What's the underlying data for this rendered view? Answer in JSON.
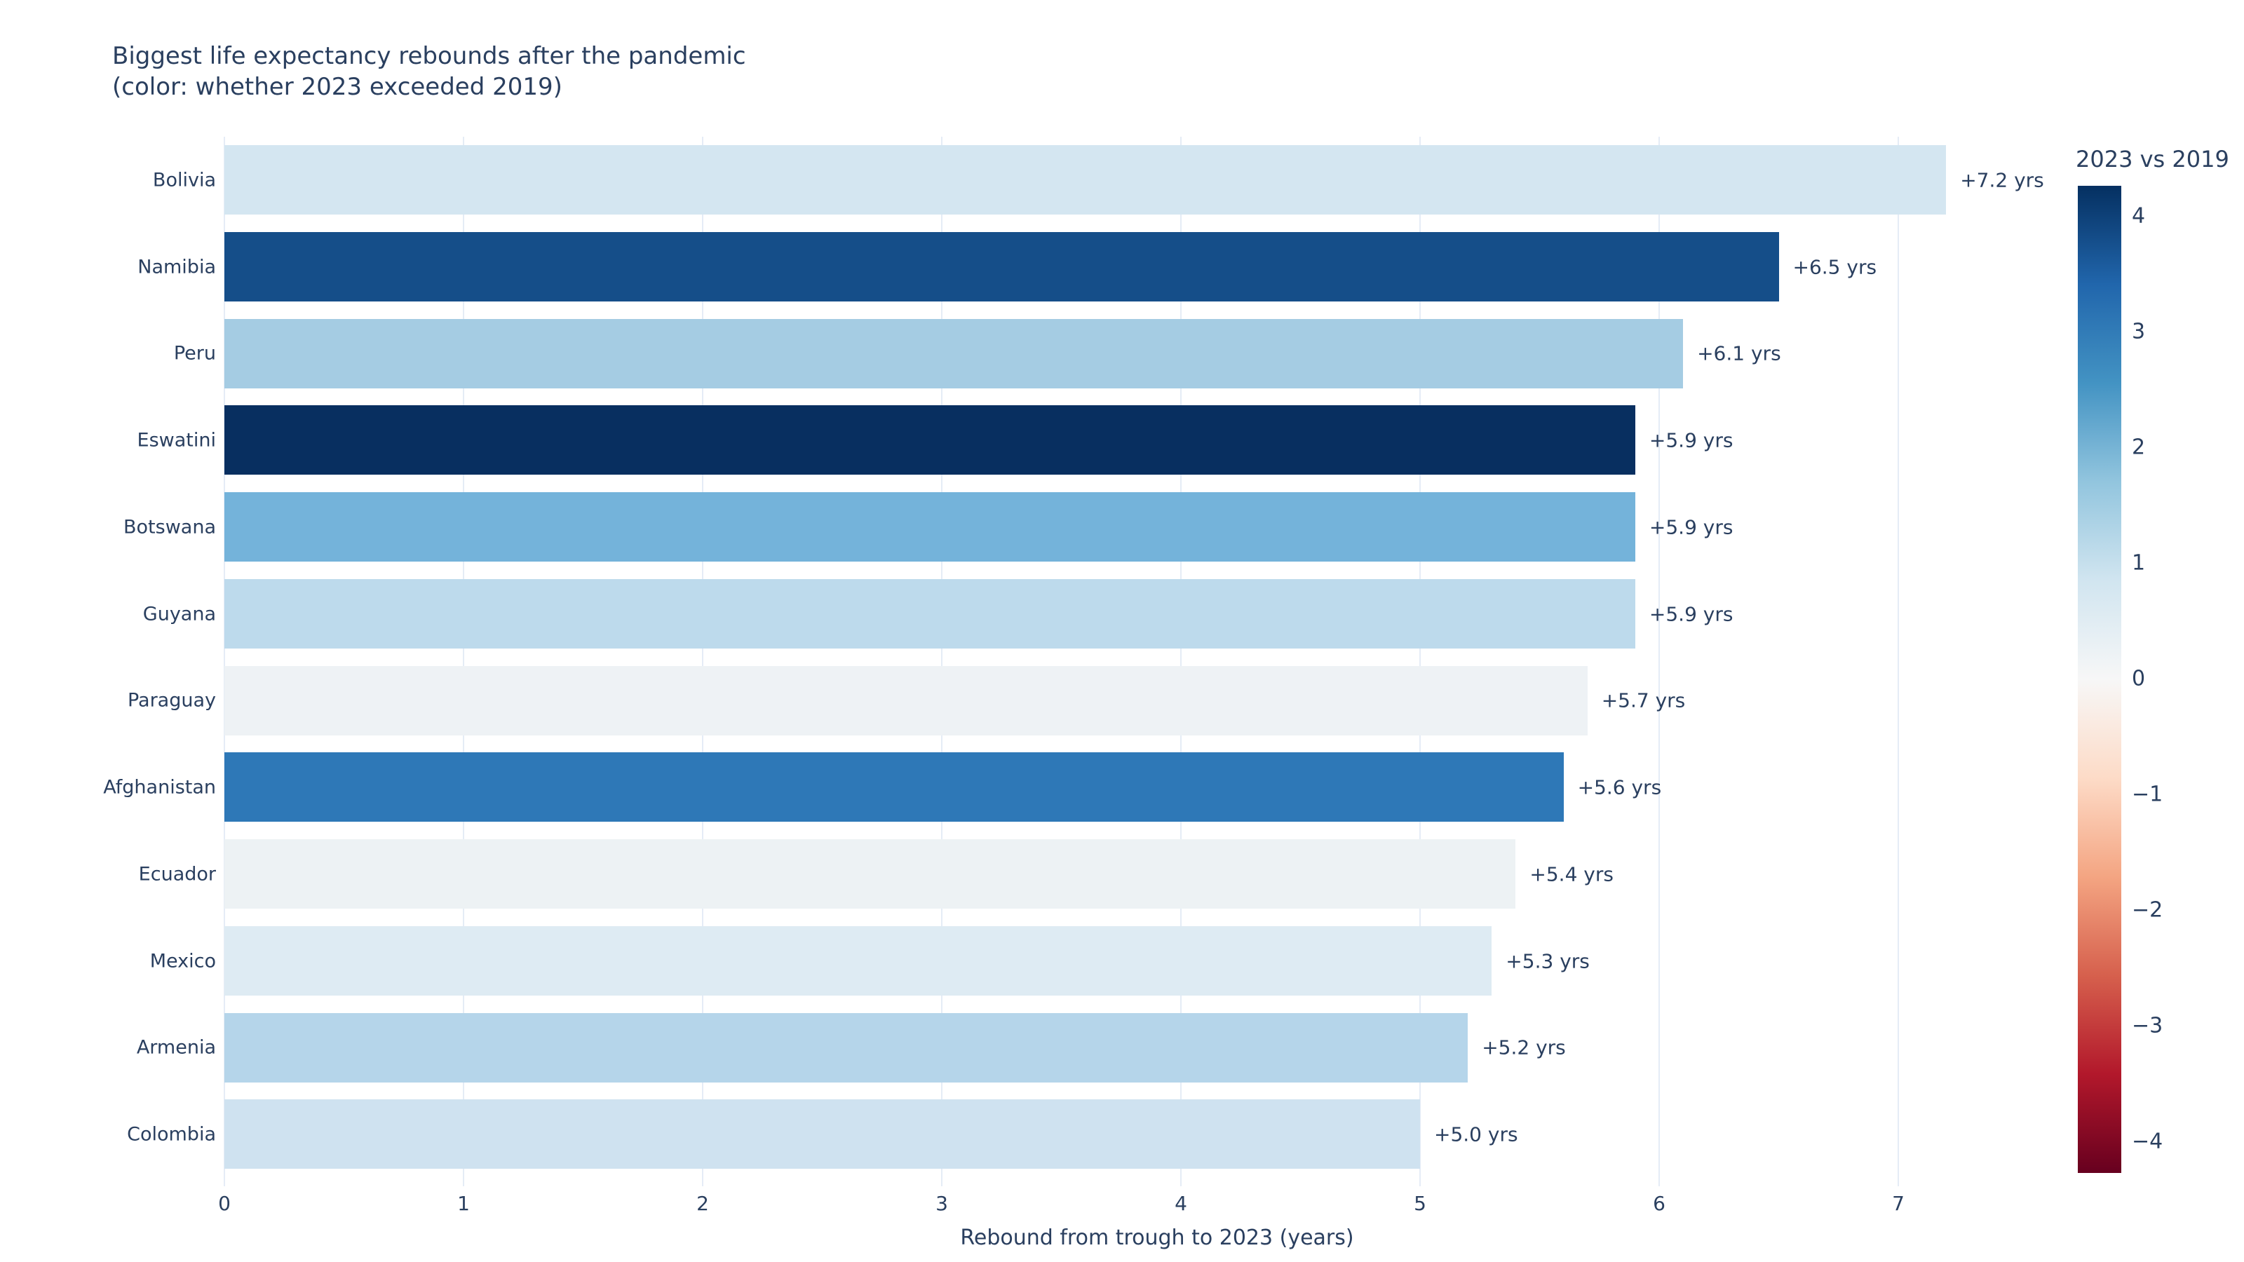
{
  "page": {
    "background": "#ffffff"
  },
  "chart_data": {
    "type": "bar",
    "orientation": "horizontal",
    "title_line1": "Biggest life expectancy rebounds after the pandemic",
    "title_line2": "(color: whether 2023 exceeded 2019)",
    "xlabel": "Rebound from trough to 2023 (years)",
    "xlim": [
      0,
      7.8
    ],
    "xticks": [
      "0",
      "1",
      "2",
      "3",
      "4",
      "5",
      "6",
      "7"
    ],
    "grid": true,
    "categories": [
      "Bolivia",
      "Namibia",
      "Peru",
      "Eswatini",
      "Botswana",
      "Guyana",
      "Paraguay",
      "Afghanistan",
      "Ecuador",
      "Mexico",
      "Armenia",
      "Colombia"
    ],
    "values": [
      7.2,
      6.5,
      6.1,
      5.9,
      5.9,
      5.9,
      5.7,
      5.6,
      5.4,
      5.3,
      5.2,
      5.0
    ],
    "bar_labels": [
      "+7.2 yrs",
      "+6.5 yrs",
      "+6.1 yrs",
      "+5.9 yrs",
      "+5.9 yrs",
      "+5.9 yrs",
      "+5.7 yrs",
      "+5.6 yrs",
      "+5.4 yrs",
      "+5.3 yrs",
      "+5.2 yrs",
      "+5.0 yrs"
    ],
    "bar_colors": [
      "#d4e6f1",
      "#154e89",
      "#a5cce3",
      "#082f60",
      "#74b3da",
      "#bddaec",
      "#eef2f5",
      "#2e78b7",
      "#edf2f4",
      "#deebf3",
      "#b5d5ea",
      "#cfe2f0"
    ],
    "colorbar": {
      "title": "2023 vs 2019",
      "tick_labels": [
        "4",
        "3",
        "2",
        "1",
        "0",
        "−1",
        "−2",
        "−3",
        "−4"
      ],
      "tick_values": [
        4,
        3,
        2,
        1,
        0,
        -1,
        -2,
        -3,
        -4
      ],
      "range": [
        -4.27,
        4.27
      ],
      "colorscale_bottom_to_top": [
        "#67001f",
        "#b2182b",
        "#d6604d",
        "#f4a582",
        "#fddbc7",
        "#f7f7f7",
        "#d1e5f0",
        "#92c5de",
        "#4393c3",
        "#2166ac",
        "#053061"
      ],
      "position": "right"
    },
    "colors": {
      "text": "#2a3f5f",
      "gridline": "#e5ecf6",
      "background": "#ffffff"
    }
  }
}
